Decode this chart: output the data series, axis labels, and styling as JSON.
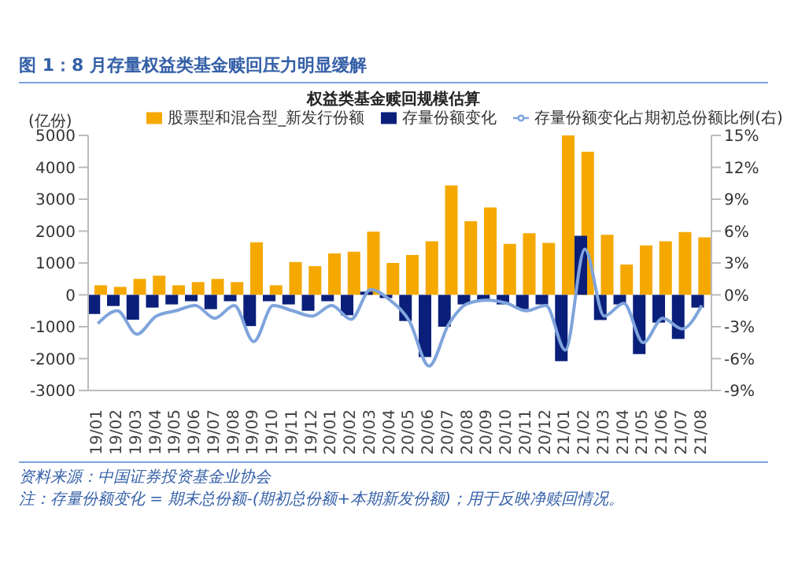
{
  "chart_data": {
    "type": "bar",
    "title": "图 1：8 月存量权益类基金赎回压力明显缓解",
    "subtitle": "权益类基金赎回规模估算",
    "ylabel": "(亿份)",
    "categories": [
      "19/01",
      "19/02",
      "19/03",
      "19/04",
      "19/05",
      "19/06",
      "19/07",
      "19/08",
      "19/09",
      "19/10",
      "19/11",
      "19/12",
      "20/01",
      "20/02",
      "20/03",
      "20/04",
      "20/05",
      "20/06",
      "20/07",
      "20/08",
      "20/09",
      "20/10",
      "20/11",
      "20/12",
      "21/01",
      "21/02",
      "21/03",
      "21/04",
      "21/05",
      "21/06",
      "21/07",
      "21/08"
    ],
    "series": [
      {
        "name": "股票型和混合型_新发行份额",
        "color": "#f5a800",
        "values": [
          300,
          250,
          500,
          600,
          300,
          400,
          500,
          400,
          1650,
          300,
          1030,
          900,
          1300,
          1350,
          1980,
          1000,
          1250,
          1680,
          3430,
          2310,
          2740,
          1600,
          1930,
          1630,
          5000,
          4490,
          1880,
          950,
          1550,
          1680,
          1970,
          1800
        ]
      },
      {
        "name": "存量份额变化",
        "color": "#0a1f7a",
        "values": [
          -600,
          -350,
          -780,
          -400,
          -300,
          -200,
          -450,
          -200,
          -980,
          -200,
          -300,
          -500,
          -200,
          -640,
          100,
          -100,
          -820,
          -1950,
          -1000,
          -300,
          -200,
          -300,
          -450,
          -300,
          -2080,
          1850,
          -790,
          -300,
          -1860,
          -870,
          -1380,
          -400
        ]
      },
      {
        "name": "存量份额变化占期初总份额比例(右)",
        "type": "line",
        "axis": "y2",
        "color": "#7fa4dc",
        "values": [
          -2.7,
          -1.5,
          -3.7,
          -2.0,
          -1.5,
          -1.0,
          -2.2,
          -1.0,
          -4.4,
          -1.0,
          -1.5,
          -2.0,
          -1.0,
          -2.3,
          0.5,
          -0.5,
          -2.5,
          -6.7,
          -2.8,
          -0.8,
          -0.5,
          -0.8,
          -1.5,
          -1.0,
          -5.2,
          4.3,
          -2.0,
          -0.8,
          -4.5,
          -2.2,
          -3.2,
          -1.0
        ]
      }
    ],
    "ylim": [
      -3000,
      5000
    ],
    "yticks": [
      -3000,
      -2000,
      -1000,
      0,
      1000,
      2000,
      3000,
      4000,
      5000
    ],
    "y2lim": [
      -9,
      15
    ],
    "y2ticks": [
      {
        "value": -9,
        "label": "-9%"
      },
      {
        "value": -6,
        "label": "-6%"
      },
      {
        "value": -3,
        "label": "-3%"
      },
      {
        "value": 0,
        "label": "0%"
      },
      {
        "value": 3,
        "label": "3%"
      },
      {
        "value": 6,
        "label": "6%"
      },
      {
        "value": 9,
        "label": "9%"
      },
      {
        "value": 12,
        "label": "12%"
      },
      {
        "value": 15,
        "label": "15%"
      }
    ],
    "legend": "top",
    "annotations": [
      "资料来源：中国证券投资基金业协会",
      "注：存量份额变化 = 期末总份额-(期初总份额+本期新发份额)；用于反映净赎回情况。"
    ]
  }
}
